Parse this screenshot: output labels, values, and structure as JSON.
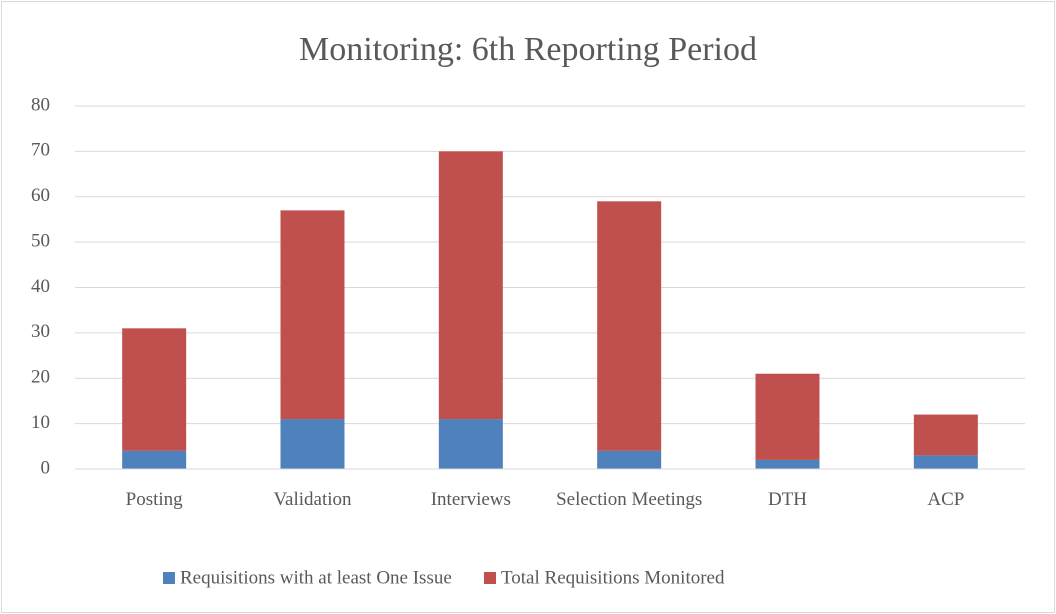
{
  "chart_data": {
    "type": "stacked_bar",
    "title": "Monitoring: 6th Reporting Period",
    "categories": [
      "Posting",
      "Validation",
      "Interviews",
      "Selection Meetings",
      "DTH",
      "ACP"
    ],
    "series": [
      {
        "name": "Requisitions with at least One Issue",
        "color": "#4f81bd",
        "values": [
          4,
          11,
          11,
          4,
          2,
          3
        ]
      },
      {
        "name": "Total Requisitions Monitored",
        "color": "#c0504d",
        "values": [
          27,
          46,
          59,
          55,
          19,
          9
        ]
      }
    ],
    "ylim": [
      0,
      80
    ],
    "yticks": [
      0,
      10,
      20,
      30,
      40,
      50,
      60,
      70,
      80
    ],
    "grid": true,
    "legend": "bottom"
  }
}
